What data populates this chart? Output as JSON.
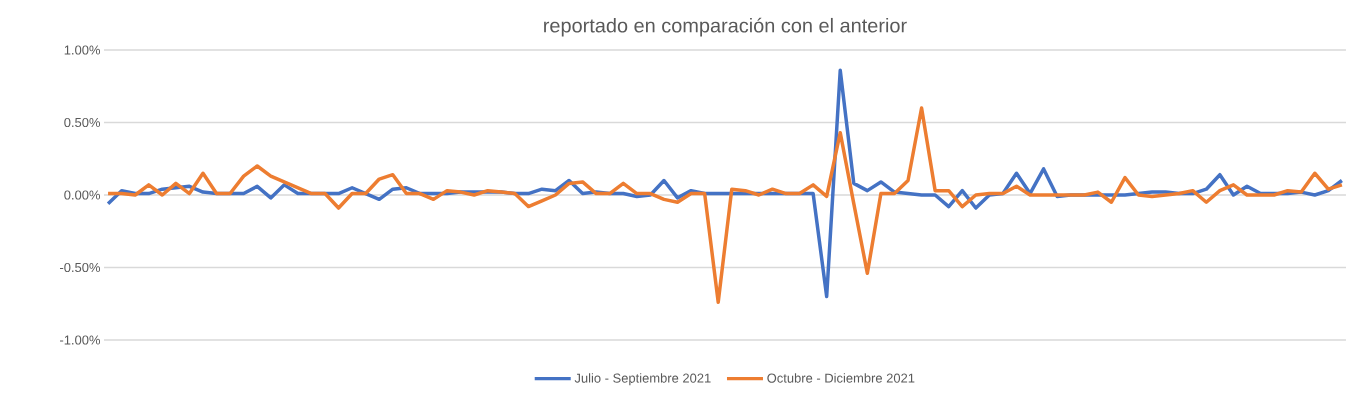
{
  "chart_data": {
    "type": "line",
    "title": "reportado en comparación con el anterior",
    "categories": [
      null,
      null,
      null,
      null,
      null,
      null,
      null,
      null,
      null,
      null,
      null,
      null,
      null,
      null,
      null,
      null,
      null,
      null,
      null,
      null,
      null,
      null,
      null,
      null,
      null,
      null,
      null,
      null,
      null,
      null,
      null,
      null,
      null,
      null,
      null,
      null,
      null,
      null,
      null,
      null,
      null,
      null,
      null,
      null,
      null,
      null,
      null,
      null,
      null,
      null,
      null,
      null,
      null,
      null,
      null,
      null,
      null,
      null,
      null,
      null,
      null,
      null,
      null,
      null,
      null,
      null,
      null,
      null,
      null,
      null,
      null,
      null,
      null,
      null,
      null,
      null,
      null,
      null,
      null,
      null,
      null,
      null,
      null,
      null,
      null,
      null,
      null,
      null,
      null,
      null,
      null,
      null
    ],
    "series": [
      {
        "name": "Julio - Septiembre 2021",
        "color": "#4472c4",
        "values": [
          -0.06,
          0.03,
          0.01,
          0.01,
          0.04,
          0.05,
          0.06,
          0.02,
          0.01,
          0.01,
          0.01,
          0.06,
          -0.02,
          0.07,
          0.01,
          0.01,
          0.01,
          0.01,
          0.05,
          0.01,
          -0.03,
          0.04,
          0.05,
          0.01,
          0.01,
          0.01,
          0.02,
          0.02,
          0.02,
          0.02,
          0.01,
          0.01,
          0.04,
          0.03,
          0.1,
          0.01,
          0.02,
          0.01,
          0.01,
          -0.01,
          0.0,
          0.1,
          -0.02,
          0.03,
          0.01,
          0.01,
          0.01,
          0.01,
          0.01,
          0.01,
          0.01,
          0.01,
          0.01,
          -0.7,
          0.86,
          0.08,
          0.03,
          0.09,
          0.02,
          0.01,
          0.0,
          0.0,
          -0.08,
          0.03,
          -0.09,
          0.0,
          0.01,
          0.15,
          0.01,
          0.18,
          -0.01,
          0.0,
          0.0,
          0.0,
          0.0,
          0.0,
          0.01,
          0.02,
          0.02,
          0.01,
          0.01,
          0.04,
          0.14,
          0.0,
          0.06,
          0.01,
          0.01,
          0.01,
          0.02,
          0.0,
          0.03,
          0.1
        ]
      },
      {
        "name": "Octubre - Diciembre 2021",
        "color": "#ed7d31",
        "values": [
          0.01,
          0.01,
          0.0,
          0.07,
          0.0,
          0.08,
          0.01,
          0.15,
          0.01,
          0.01,
          0.13,
          0.2,
          0.13,
          0.09,
          0.05,
          0.01,
          0.01,
          -0.09,
          0.01,
          0.01,
          0.11,
          0.14,
          0.01,
          0.01,
          -0.03,
          0.03,
          0.02,
          0.0,
          0.03,
          0.02,
          0.01,
          -0.08,
          -0.04,
          0.0,
          0.08,
          0.09,
          0.01,
          0.01,
          0.08,
          0.01,
          0.01,
          -0.03,
          -0.05,
          0.01,
          0.01,
          -0.74,
          0.04,
          0.03,
          0.0,
          0.04,
          0.01,
          0.01,
          0.07,
          -0.01,
          0.43,
          -0.06,
          -0.54,
          0.01,
          0.01,
          0.1,
          0.6,
          0.03,
          0.03,
          -0.08,
          0.0,
          0.01,
          0.01,
          0.06,
          0.0,
          0.0,
          0.0,
          0.0,
          0.0,
          0.02,
          -0.05,
          0.12,
          0.0,
          -0.01,
          0.0,
          0.01,
          0.03,
          -0.05,
          0.03,
          0.07,
          0.0,
          0.0,
          0.0,
          0.03,
          0.02,
          0.15,
          0.04,
          0.07
        ]
      }
    ],
    "ylim": [
      -1.0,
      1.0
    ],
    "yticks": [
      {
        "value": -1,
        "label": "-1.00%"
      },
      {
        "value": -0.5,
        "label": "-0.50%"
      },
      {
        "value": 0,
        "label": "0.00%"
      },
      {
        "value": 0.5,
        "label": "0.50%"
      },
      {
        "value": 1,
        "label": "1.00%"
      }
    ],
    "grid": "y",
    "legend": "bottom",
    "tick_labels": "y",
    "marker": "none",
    "line_style": "solid"
  }
}
